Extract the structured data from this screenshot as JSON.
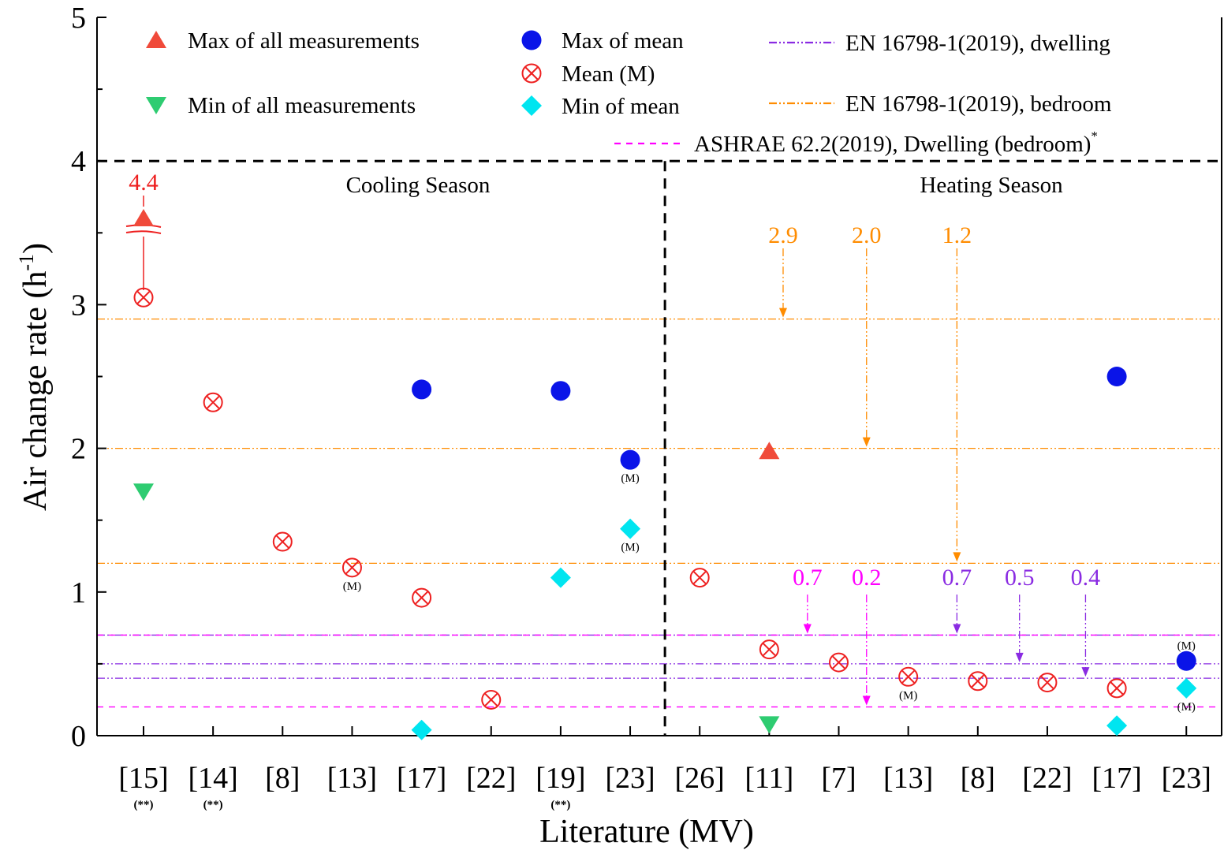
{
  "chart_data": {
    "type": "scatter",
    "xlabel": "Literature (MV)",
    "ylabel": "Air change rate (h",
    "ylabel_sup": "-1",
    "ylabel_close": ")",
    "ylim": [
      0,
      5
    ],
    "yticks": [
      "0",
      "1",
      "2",
      "3",
      "4",
      "5"
    ],
    "categories": [
      "[15]",
      "[14]",
      "[8]",
      "[13]",
      "[17]",
      "[22]",
      "[19]",
      "[23]",
      "[26]",
      "[11]",
      "[7]",
      "[13]",
      "[8]",
      "[22]",
      "[17]",
      "[23]"
    ],
    "category_notes": [
      "(**)",
      "(**)",
      "",
      "",
      "",
      "",
      "(**)",
      "",
      "",
      "",
      "",
      "",
      "",
      "",
      "",
      ""
    ],
    "seasons": [
      {
        "name": "Cooling Season",
        "from": 0,
        "to": 7
      },
      {
        "name": "Heating Season",
        "from": 8,
        "to": 15
      }
    ],
    "series": [
      {
        "name": "Max of all measurements",
        "marker": "triangle-up",
        "color": "#f04a3a",
        "points": [
          {
            "x": 0,
            "y": 4.4,
            "broken": true
          },
          {
            "x": 9,
            "y": 1.98
          }
        ]
      },
      {
        "name": "Min of all measurements",
        "marker": "triangle-down",
        "color": "#2ecc71",
        "points": [
          {
            "x": 0,
            "y": 1.7
          },
          {
            "x": 9,
            "y": 0.08
          }
        ]
      },
      {
        "name": "Max of mean",
        "marker": "circle",
        "color": "#0a14e8",
        "points": [
          {
            "x": 4,
            "y": 2.41
          },
          {
            "x": 6,
            "y": 2.4
          },
          {
            "x": 7,
            "y": 1.92,
            "note": "(M)"
          },
          {
            "x": 14,
            "y": 2.5
          },
          {
            "x": 15,
            "y": 0.52,
            "note": "(M)"
          }
        ]
      },
      {
        "name": "Mean (M)",
        "marker": "circle-x",
        "color": "#ee2020",
        "points": [
          {
            "x": 0,
            "y": 3.05
          },
          {
            "x": 1,
            "y": 2.32
          },
          {
            "x": 2,
            "y": 1.35
          },
          {
            "x": 3,
            "y": 1.17,
            "note": "(M)"
          },
          {
            "x": 4,
            "y": 0.96
          },
          {
            "x": 5,
            "y": 0.25
          },
          {
            "x": 8,
            "y": 1.1
          },
          {
            "x": 9,
            "y": 0.6
          },
          {
            "x": 10,
            "y": 0.51
          },
          {
            "x": 11,
            "y": 0.41,
            "note": "(M)"
          },
          {
            "x": 12,
            "y": 0.38
          },
          {
            "x": 13,
            "y": 0.37
          },
          {
            "x": 14,
            "y": 0.33
          }
        ]
      },
      {
        "name": "Min of mean",
        "marker": "diamond",
        "color": "#00e5f0",
        "points": [
          {
            "x": 4,
            "y": 0.04
          },
          {
            "x": 6,
            "y": 1.1
          },
          {
            "x": 7,
            "y": 1.44,
            "note": "(M)"
          },
          {
            "x": 14,
            "y": 0.07
          },
          {
            "x": 15,
            "y": 0.33,
            "note": "(M)"
          }
        ]
      }
    ],
    "reference_lines": [
      {
        "name": "EN 16798-1(2019), dwelling",
        "color": "#8a2be2",
        "style": "dash-dot-dot",
        "values": [
          0.7,
          0.5,
          0.4
        ]
      },
      {
        "name": "EN 16798-1(2019), bedroom",
        "color": "#ff8c00",
        "style": "dash-dot-dot",
        "values": [
          2.9,
          2.0,
          1.2
        ]
      },
      {
        "name": "ASHRAE 62.2(2019), Dwelling (bedroom)",
        "name_suffix": "*",
        "color": "#ff00ff",
        "style": "dash",
        "values": [
          0.7,
          0.2
        ]
      }
    ],
    "annotations": [
      {
        "text": "4.4",
        "color": "#ee2020"
      },
      {
        "text": "2.9",
        "color": "#ff8c00",
        "x": 9.2,
        "target": 2.9
      },
      {
        "text": "2.0",
        "color": "#ff8c00",
        "x": 10.4,
        "target": 2.0
      },
      {
        "text": "1.2",
        "color": "#ff8c00",
        "x": 11.7,
        "target": 1.2
      },
      {
        "text": "0.7",
        "color": "#ff00ff",
        "x": 9.55,
        "target": 0.7
      },
      {
        "text": "0.2",
        "color": "#ff00ff",
        "x": 10.4,
        "target": 0.2
      },
      {
        "text": "0.7",
        "color": "#8a2be2",
        "x": 11.7,
        "target": 0.7
      },
      {
        "text": "0.5",
        "color": "#8a2be2",
        "x": 12.6,
        "target": 0.5
      },
      {
        "text": "0.4",
        "color": "#8a2be2",
        "x": 13.55,
        "target": 0.4
      }
    ],
    "threshold_line": {
      "y": 4,
      "color": "#000000",
      "style": "dash"
    },
    "grid": false,
    "legend_position": "top"
  }
}
